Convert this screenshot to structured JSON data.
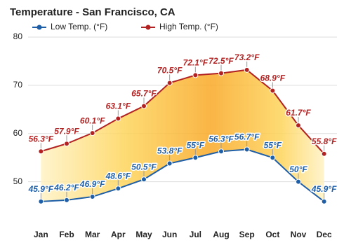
{
  "chart_data": {
    "type": "line",
    "title": "Temperature - San Francisco, CA",
    "categories": [
      "Jan",
      "Feb",
      "Mar",
      "Apr",
      "May",
      "Jun",
      "Jul",
      "Aug",
      "Sep",
      "Oct",
      "Nov",
      "Dec"
    ],
    "series": [
      {
        "name": "Low Temp. (°F)",
        "color": "#1f5fa8",
        "values": [
          45.9,
          46.2,
          46.9,
          48.6,
          50.5,
          53.8,
          55,
          56.3,
          56.7,
          55,
          50,
          45.9
        ],
        "value_labels": [
          "45.9°F",
          "46.2°F",
          "46.9°F",
          "48.6°F",
          "50.5°F",
          "53.8°F",
          "55°F",
          "56.3°F",
          "56.7°F",
          "55°F",
          "50°F",
          "45.9°F"
        ]
      },
      {
        "name": "High Temp. (°F)",
        "color": "#b22222",
        "values": [
          56.3,
          57.9,
          60.1,
          63.1,
          65.7,
          70.5,
          72.1,
          72.5,
          73.2,
          68.9,
          61.7,
          55.8
        ],
        "value_labels": [
          "56.3°F",
          "57.9°F",
          "60.1°F",
          "63.1°F",
          "65.7°F",
          "70.5°F",
          "72.1°F",
          "72.5°F",
          "73.2°F",
          "68.9°F",
          "61.7°F",
          "55.8°F"
        ]
      }
    ],
    "ylim": [
      44,
      80
    ],
    "yticks": [
      50,
      60,
      70,
      80
    ],
    "grid": true
  }
}
